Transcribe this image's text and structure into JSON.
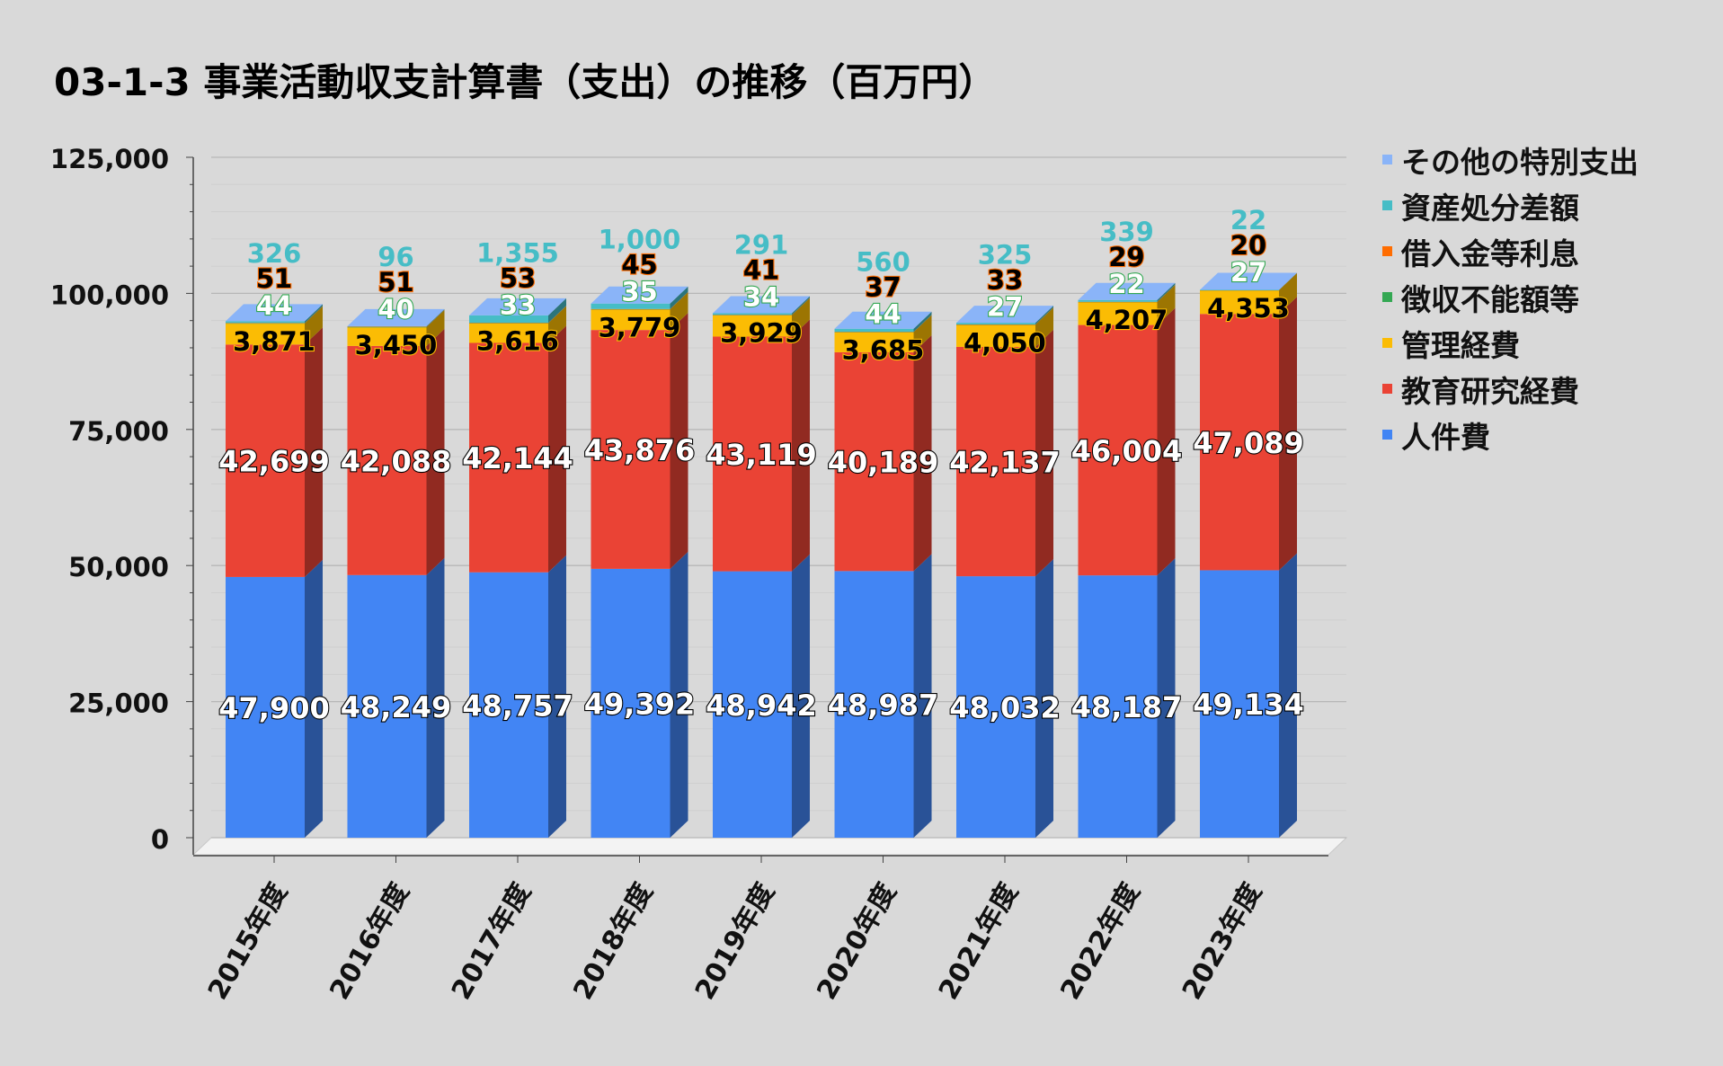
{
  "chart_data": {
    "type": "bar",
    "stacked": true,
    "three_d": true,
    "title": "03-1-3 事業活動収支計算書（支出）の推移（百万円）",
    "categories": [
      "2015年度",
      "2016年度",
      "2017年度",
      "2018年度",
      "2019年度",
      "2020年度",
      "2021年度",
      "2022年度",
      "2023年度"
    ],
    "ylim": [
      0,
      125000
    ],
    "yticks": [
      0,
      25000,
      50000,
      75000,
      100000,
      125000
    ],
    "ytick_labels": [
      "0",
      "25,000",
      "50,000",
      "75,000",
      "100,000",
      "125,000"
    ],
    "grid": true,
    "legend_position": "right",
    "series": [
      {
        "name": "人件費",
        "color": "#4285f4",
        "label_color": "#ffffff",
        "values": [
          47900,
          48249,
          48757,
          49392,
          48942,
          48987,
          48032,
          48187,
          49134
        ],
        "labels": [
          "47,900",
          "48,249",
          "48,757",
          "49,392",
          "48,942",
          "48,987",
          "48,032",
          "48,187",
          "49,134"
        ]
      },
      {
        "name": "教育研究経費",
        "color": "#ea4335",
        "label_color": "#ffffff",
        "values": [
          42699,
          42088,
          42144,
          43876,
          43119,
          40189,
          42137,
          46004,
          47089
        ],
        "labels": [
          "42,699",
          "42,088",
          "42,144",
          "43,876",
          "43,119",
          "40,189",
          "42,137",
          "46,004",
          "47,089"
        ]
      },
      {
        "name": "管理経費",
        "color": "#fbbc04",
        "label_color": "#000000",
        "values": [
          3871,
          3450,
          3616,
          3779,
          3929,
          3685,
          4050,
          4207,
          4353
        ],
        "labels": [
          "3,871",
          "3,450",
          "3,616",
          "3,779",
          "3,929",
          "3,685",
          "4,050",
          "4,207",
          "4,353"
        ]
      },
      {
        "name": "徴収不能額等",
        "color": "#34a853",
        "label_color": "#ffffff",
        "values": [
          44,
          40,
          33,
          35,
          34,
          44,
          27,
          22,
          27
        ],
        "labels": [
          "44",
          "40",
          "33",
          "35",
          "34",
          "44",
          "27",
          "22",
          "27"
        ]
      },
      {
        "name": "借入金等利息",
        "color": "#ff6d01",
        "label_color": "#000000",
        "values": [
          51,
          51,
          53,
          45,
          41,
          37,
          33,
          29,
          20
        ],
        "labels": [
          "51",
          "51",
          "53",
          "45",
          "41",
          "37",
          "33",
          "29",
          "20"
        ]
      },
      {
        "name": "資産処分差額",
        "color": "#46bdc6",
        "label_color": "#46bdc6",
        "values": [
          326,
          96,
          1355,
          1000,
          291,
          560,
          325,
          339,
          22
        ],
        "labels": [
          "326",
          "96",
          "1,355",
          "1,000",
          "291",
          "560",
          "325",
          "339",
          "22"
        ]
      },
      {
        "name": "その他の特別支出",
        "color": "#8ab4f8",
        "label_color": "#ffffff",
        "values": [
          0,
          0,
          0,
          0,
          0,
          0,
          0,
          0,
          0
        ],
        "labels": []
      }
    ]
  }
}
